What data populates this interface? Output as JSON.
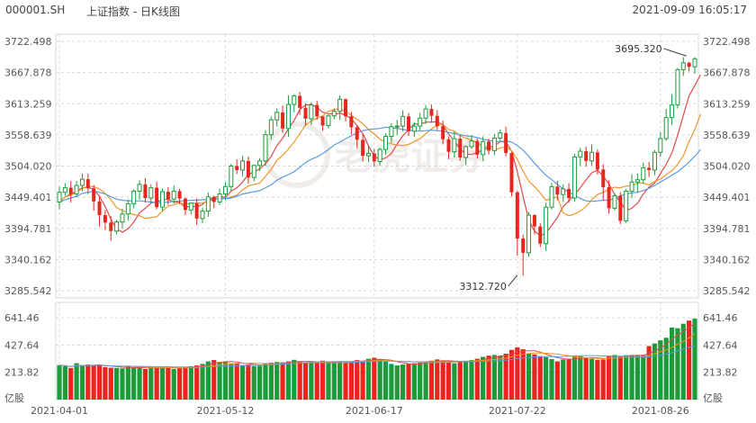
{
  "header": {
    "code": "000001.SH",
    "title": "上证指数 - 日K线图",
    "datetime": "2021-09-09 16:05:17"
  },
  "watermark": "老虎证券",
  "colors": {
    "up": "#e8261e",
    "down": "#1d9b3a",
    "ma5": "#e04a4a",
    "ma10": "#f0962a",
    "ma20": "#5a9be0",
    "grid": "#d8d8d8",
    "text": "#555555"
  },
  "chart_data": [
    {
      "type": "candlestick",
      "title": "",
      "ylim": [
        3285.542,
        3722.498
      ],
      "y_ticks": [
        "3722.498",
        "3667.878",
        "3613.259",
        "3558.639",
        "3504.020",
        "3449.401",
        "3394.781",
        "3340.162",
        "3285.542"
      ],
      "x_tick_labels": [
        "2021-04-01",
        "2021-05-12",
        "2021-06-17",
        "2021-07-22",
        "2021-08-26"
      ],
      "x_tick_indices": [
        0,
        29,
        55,
        80,
        105
      ],
      "annotations": [
        {
          "text": "3695.320",
          "index": 110,
          "value": 3695.32,
          "kind": "high"
        },
        {
          "text": "3312.720",
          "index": 80,
          "value": 3312.72,
          "kind": "low"
        }
      ],
      "candles": [
        [
          3441,
          3458,
          3428,
          3468
        ],
        [
          3458,
          3466,
          3452,
          3474
        ],
        [
          3466,
          3455,
          3440,
          3478
        ],
        [
          3455,
          3470,
          3449,
          3478
        ],
        [
          3470,
          3481,
          3460,
          3491
        ],
        [
          3481,
          3465,
          3455,
          3491
        ],
        [
          3465,
          3442,
          3426,
          3471
        ],
        [
          3442,
          3418,
          3398,
          3452
        ],
        [
          3418,
          3405,
          3392,
          3427
        ],
        [
          3405,
          3390,
          3373,
          3416
        ],
        [
          3390,
          3406,
          3384,
          3410
        ],
        [
          3406,
          3420,
          3395,
          3429
        ],
        [
          3420,
          3438,
          3408,
          3445
        ],
        [
          3438,
          3460,
          3430,
          3463
        ],
        [
          3460,
          3472,
          3445,
          3479
        ],
        [
          3472,
          3448,
          3440,
          3483
        ],
        [
          3448,
          3466,
          3439,
          3472
        ],
        [
          3466,
          3432,
          3428,
          3477
        ],
        [
          3432,
          3459,
          3425,
          3464
        ],
        [
          3459,
          3446,
          3436,
          3467
        ],
        [
          3446,
          3460,
          3438,
          3470
        ],
        [
          3460,
          3447,
          3437,
          3464
        ],
        [
          3447,
          3427,
          3418,
          3449
        ],
        [
          3427,
          3439,
          3419,
          3440
        ],
        [
          3439,
          3412,
          3401,
          3447
        ],
        [
          3412,
          3425,
          3404,
          3431
        ],
        [
          3425,
          3450,
          3415,
          3458
        ],
        [
          3450,
          3441,
          3430,
          3452
        ],
        [
          3441,
          3455,
          3436,
          3464
        ],
        [
          3455,
          3468,
          3444,
          3475
        ],
        [
          3468,
          3504,
          3460,
          3508
        ],
        [
          3504,
          3497,
          3490,
          3516
        ],
        [
          3497,
          3513,
          3486,
          3522
        ],
        [
          3513,
          3484,
          3473,
          3521
        ],
        [
          3484,
          3505,
          3477,
          3507
        ],
        [
          3505,
          3513,
          3495,
          3518
        ],
        [
          3513,
          3559,
          3504,
          3567
        ],
        [
          3559,
          3585,
          3550,
          3591
        ],
        [
          3585,
          3598,
          3573,
          3605
        ],
        [
          3598,
          3570,
          3562,
          3610
        ],
        [
          3570,
          3612,
          3555,
          3628
        ],
        [
          3612,
          3627,
          3598,
          3630
        ],
        [
          3627,
          3606,
          3594,
          3634
        ],
        [
          3606,
          3587,
          3575,
          3614
        ],
        [
          3587,
          3611,
          3576,
          3616
        ],
        [
          3611,
          3591,
          3585,
          3618
        ],
        [
          3591,
          3575,
          3566,
          3591
        ],
        [
          3575,
          3592,
          3570,
          3596
        ],
        [
          3592,
          3600,
          3586,
          3605
        ],
        [
          3600,
          3621,
          3585,
          3628
        ],
        [
          3621,
          3591,
          3582,
          3623
        ],
        [
          3591,
          3572,
          3559,
          3599
        ],
        [
          3572,
          3550,
          3535,
          3576
        ],
        [
          3550,
          3522,
          3512,
          3561
        ],
        [
          3522,
          3526,
          3511,
          3541
        ],
        [
          3526,
          3512,
          3503,
          3534
        ],
        [
          3512,
          3533,
          3505,
          3536
        ],
        [
          3533,
          3556,
          3524,
          3561
        ],
        [
          3556,
          3573,
          3545,
          3579
        ],
        [
          3573,
          3574,
          3559,
          3585
        ],
        [
          3574,
          3591,
          3565,
          3602
        ],
        [
          3591,
          3565,
          3557,
          3597
        ],
        [
          3565,
          3574,
          3555,
          3581
        ],
        [
          3574,
          3588,
          3566,
          3597
        ],
        [
          3588,
          3604,
          3578,
          3611
        ],
        [
          3604,
          3592,
          3580,
          3612
        ],
        [
          3592,
          3574,
          3567,
          3602
        ],
        [
          3574,
          3551,
          3542,
          3584
        ],
        [
          3551,
          3529,
          3516,
          3556
        ],
        [
          3529,
          3552,
          3519,
          3564
        ],
        [
          3552,
          3519,
          3513,
          3558
        ],
        [
          3519,
          3538,
          3506,
          3540
        ],
        [
          3538,
          3548,
          3534,
          3558
        ],
        [
          3548,
          3524,
          3517,
          3552
        ],
        [
          3524,
          3547,
          3513,
          3556
        ],
        [
          3547,
          3531,
          3524,
          3552
        ],
        [
          3531,
          3553,
          3523,
          3560
        ],
        [
          3553,
          3562,
          3548,
          3568
        ],
        [
          3562,
          3527,
          3521,
          3573
        ],
        [
          3527,
          3458,
          3451,
          3528
        ],
        [
          3458,
          3377,
          3347,
          3461
        ],
        [
          3377,
          3352,
          3312,
          3384
        ],
        [
          3352,
          3418,
          3345,
          3424
        ],
        [
          3418,
          3398,
          3384,
          3420
        ],
        [
          3398,
          3368,
          3362,
          3404
        ],
        [
          3368,
          3432,
          3355,
          3440
        ],
        [
          3432,
          3468,
          3428,
          3475
        ],
        [
          3468,
          3454,
          3444,
          3478
        ],
        [
          3454,
          3464,
          3441,
          3472
        ],
        [
          3464,
          3448,
          3440,
          3474
        ],
        [
          3448,
          3520,
          3442,
          3525
        ],
        [
          3520,
          3530,
          3504,
          3536
        ],
        [
          3530,
          3513,
          3503,
          3538
        ],
        [
          3513,
          3528,
          3505,
          3542
        ],
        [
          3528,
          3498,
          3489,
          3533
        ],
        [
          3498,
          3467,
          3444,
          3507
        ],
        [
          3467,
          3430,
          3421,
          3479
        ],
        [
          3430,
          3452,
          3426,
          3456
        ],
        [
          3452,
          3408,
          3402,
          3458
        ],
        [
          3408,
          3460,
          3404,
          3464
        ],
        [
          3460,
          3476,
          3448,
          3490
        ],
        [
          3476,
          3480,
          3458,
          3491
        ],
        [
          3480,
          3501,
          3473,
          3510
        ],
        [
          3501,
          3497,
          3485,
          3511
        ],
        [
          3497,
          3528,
          3488,
          3532
        ],
        [
          3528,
          3552,
          3520,
          3563
        ],
        [
          3552,
          3589,
          3548,
          3604
        ],
        [
          3589,
          3611,
          3576,
          3630
        ],
        [
          3611,
          3673,
          3605,
          3676
        ],
        [
          3673,
          3685,
          3662,
          3695
        ],
        [
          3685,
          3678,
          3670,
          3687
        ],
        [
          3678,
          3692,
          3666,
          3695
        ]
      ],
      "volume_ylim": [
        0,
        720
      ],
      "volume_ticks": [
        "641.46",
        "427.64",
        "213.82"
      ],
      "volume_unit": "亿股",
      "volume": [
        270,
        262,
        248,
        285,
        265,
        275,
        272,
        268,
        255,
        250,
        248,
        245,
        265,
        250,
        255,
        240,
        250,
        248,
        255,
        250,
        240,
        245,
        258,
        262,
        268,
        280,
        300,
        310,
        295,
        300,
        285,
        283,
        270,
        275,
        262,
        265,
        285,
        290,
        295,
        292,
        300,
        312,
        298,
        290,
        295,
        288,
        305,
        300,
        298,
        302,
        290,
        300,
        310,
        305,
        320,
        328,
        315,
        298,
        280,
        268,
        275,
        282,
        285,
        290,
        300,
        305,
        315,
        308,
        298,
        285,
        295,
        305,
        310,
        320,
        335,
        345,
        350,
        345,
        360,
        390,
        410,
        395,
        362,
        355,
        340,
        333,
        318,
        300,
        315,
        320,
        335,
        340,
        330,
        320,
        312,
        315,
        338,
        350,
        340,
        348,
        350,
        345,
        350,
        420,
        440,
        465,
        485,
        565,
        560,
        595,
        620,
        635
      ],
      "series": [
        {
          "name": "MA5",
          "values": [
            3441,
            3450,
            3455,
            3460,
            3466,
            3467,
            3463,
            3451,
            3433,
            3411,
            3394,
            3388,
            3394,
            3406,
            3422,
            3430,
            3439,
            3442,
            3444,
            3446,
            3441,
            3441,
            3431,
            3435,
            3432,
            3437,
            3445,
            3449,
            3451,
            3449,
            3460,
            3466,
            3476,
            3489,
            3494,
            3499,
            3508,
            3521,
            3540,
            3553,
            3569,
            3584,
            3603,
            3611,
            3612,
            3607,
            3598,
            3596,
            3595,
            3597,
            3593,
            3587,
            3575,
            3561,
            3539,
            3522,
            3515,
            3518,
            3526,
            3543,
            3557,
            3568,
            3578,
            3577,
            3581,
            3581,
            3582,
            3576,
            3560,
            3548,
            3534,
            3525,
            3524,
            3528,
            3532,
            3537,
            3539,
            3547,
            3546,
            3530,
            3494,
            3451,
            3409,
            3390,
            3382,
            3386,
            3400,
            3414,
            3433,
            3443,
            3454,
            3466,
            3480,
            3492,
            3497,
            3486,
            3473,
            3454,
            3441,
            3426,
            3430,
            3439,
            3455,
            3467,
            3474,
            3491,
            3507,
            3527,
            3558,
            3593,
            3627,
            3645,
            3664
          ]
        },
        {
          "name": "MA10",
          "values": [
            3441,
            3450,
            3453,
            3458,
            3465,
            3468,
            3468,
            3464,
            3456,
            3445,
            3431,
            3426,
            3422,
            3419,
            3417,
            3412,
            3414,
            3415,
            3425,
            3434,
            3436,
            3440,
            3437,
            3439,
            3439,
            3439,
            3443,
            3445,
            3448,
            3447,
            3450,
            3453,
            3462,
            3469,
            3472,
            3474,
            3486,
            3498,
            3514,
            3523,
            3534,
            3546,
            3561,
            3576,
            3583,
            3588,
            3592,
            3600,
            3603,
            3605,
            3600,
            3593,
            3586,
            3578,
            3568,
            3560,
            3551,
            3546,
            3543,
            3541,
            3540,
            3542,
            3547,
            3552,
            3561,
            3569,
            3575,
            3577,
            3568,
            3565,
            3557,
            3553,
            3550,
            3544,
            3540,
            3536,
            3532,
            3536,
            3537,
            3531,
            3516,
            3495,
            3478,
            3468,
            3457,
            3444,
            3447,
            3450,
            3422,
            3417,
            3420,
            3425,
            3433,
            3445,
            3454,
            3458,
            3463,
            3467,
            3466,
            3469,
            3469,
            3474,
            3474,
            3471,
            3477,
            3481,
            3489,
            3496,
            3507,
            3522,
            3547,
            3568,
            3595
          ]
        },
        {
          "name": "MA20",
          "values": [
            3441,
            3445,
            3448,
            3451,
            3456,
            3458,
            3460,
            3458,
            3455,
            3450,
            3446,
            3444,
            3443,
            3443,
            3443,
            3442,
            3441,
            3440,
            3440,
            3441,
            3442,
            3443,
            3443,
            3444,
            3444,
            3445,
            3445,
            3446,
            3447,
            3447,
            3448,
            3451,
            3455,
            3457,
            3459,
            3461,
            3466,
            3471,
            3479,
            3485,
            3489,
            3494,
            3502,
            3510,
            3516,
            3520,
            3526,
            3533,
            3541,
            3546,
            3552,
            3557,
            3562,
            3566,
            3568,
            3569,
            3570,
            3572,
            3571,
            3570,
            3568,
            3567,
            3566,
            3565,
            3566,
            3567,
            3566,
            3565,
            3563,
            3561,
            3559,
            3557,
            3556,
            3554,
            3551,
            3549,
            3547,
            3547,
            3548,
            3546,
            3540,
            3532,
            3521,
            3509,
            3498,
            3488,
            3480,
            3472,
            3464,
            3458,
            3453,
            3447,
            3443,
            3442,
            3443,
            3444,
            3444,
            3447,
            3452,
            3455,
            3457,
            3458,
            3461,
            3465,
            3470,
            3476,
            3482,
            3488,
            3494,
            3502,
            3511,
            3521,
            3533
          ]
        }
      ]
    }
  ]
}
